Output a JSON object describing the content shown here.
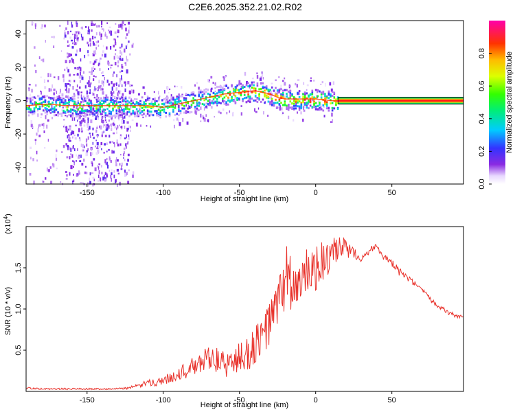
{
  "figure_title": "C2E6.2025.352.21.02.R02",
  "chart_data": [
    {
      "type": "heatmap",
      "name": "spectrogram",
      "xlabel": "Height of straight line (km)",
      "ylabel": "Frequency (Hz)",
      "xlim": [
        -190,
        97
      ],
      "ylim": [
        -50,
        48
      ],
      "xticks": [
        -150,
        -100,
        -50,
        0,
        50
      ],
      "xtick_labels": [
        "-150",
        "-100",
        "-50",
        "0",
        "50"
      ],
      "yticks": [
        -40,
        -20,
        0,
        20,
        40
      ],
      "ytick_labels": [
        "-40",
        "-20",
        "0",
        "20",
        "40"
      ],
      "ridge": {
        "x": [
          -190,
          -175,
          -165,
          -150,
          -130,
          -110,
          -100,
          -90,
          -80,
          -70,
          -60,
          -50,
          -40,
          -35,
          -30,
          -25,
          -20,
          -10,
          0,
          10,
          97
        ],
        "y": [
          -3,
          -2,
          -3,
          -3,
          -3,
          -3,
          -4,
          -2,
          0,
          2,
          4,
          5,
          6,
          5,
          4,
          2,
          1,
          1,
          1,
          0,
          0
        ]
      },
      "colorbar": {
        "label": "Normalized spectral amplitude",
        "range": [
          0,
          1
        ],
        "ticks": [
          0.0,
          0.2,
          0.4,
          0.6,
          0.8
        ],
        "tick_labels": [
          "0.0",
          "0.2",
          "0.4",
          "0.6",
          "0.8"
        ]
      }
    },
    {
      "type": "line",
      "name": "snr",
      "xlabel": "Height of straight line (km)",
      "ylabel": "SNR (10 * v/v)",
      "multiplier": "(x10",
      "multiplier_exp": "4",
      "multiplier_close": ")",
      "xlim": [
        -190,
        97
      ],
      "ylim": [
        0,
        2.0
      ],
      "xticks": [
        -150,
        -100,
        -50,
        0,
        50
      ],
      "xtick_labels": [
        "-150",
        "-100",
        "-50",
        "0",
        "50"
      ],
      "yticks": [
        0.5,
        1.0,
        1.5
      ],
      "ytick_labels": [
        "0.5",
        "1.0",
        "1.5"
      ],
      "series": [
        {
          "name": "SNR",
          "color": "#e8312a",
          "x": [
            -190,
            -180,
            -170,
            -160,
            -150,
            -140,
            -130,
            -120,
            -110,
            -100,
            -95,
            -90,
            -85,
            -80,
            -75,
            -70,
            -65,
            -60,
            -55,
            -50,
            -45,
            -40,
            -35,
            -30,
            -25,
            -20,
            -18,
            -15,
            -10,
            -5,
            0,
            5,
            10,
            15,
            20,
            25,
            30,
            35,
            40,
            45,
            50,
            55,
            60,
            65,
            70,
            75,
            80,
            85,
            90,
            97
          ],
          "y": [
            0.04,
            0.03,
            0.03,
            0.03,
            0.03,
            0.03,
            0.03,
            0.05,
            0.1,
            0.13,
            0.17,
            0.22,
            0.25,
            0.3,
            0.33,
            0.45,
            0.38,
            0.32,
            0.35,
            0.4,
            0.45,
            0.55,
            0.65,
            0.85,
            1.05,
            1.35,
            1.5,
            1.2,
            1.3,
            1.45,
            1.48,
            1.58,
            1.62,
            1.7,
            1.73,
            1.68,
            1.62,
            1.7,
            1.78,
            1.62,
            1.55,
            1.45,
            1.38,
            1.3,
            1.22,
            1.12,
            1.05,
            0.98,
            0.93,
            0.9
          ],
          "noise": [
            0.01,
            0.01,
            0.01,
            0.01,
            0.01,
            0.01,
            0.01,
            0.02,
            0.04,
            0.06,
            0.06,
            0.08,
            0.1,
            0.12,
            0.12,
            0.18,
            0.16,
            0.16,
            0.18,
            0.2,
            0.22,
            0.25,
            0.25,
            0.3,
            0.3,
            0.38,
            0.4,
            0.35,
            0.32,
            0.3,
            0.28,
            0.25,
            0.22,
            0.2,
            0.12,
            0.06,
            0.05,
            0.05,
            0.04,
            0.05,
            0.05,
            0.05,
            0.04,
            0.04,
            0.04,
            0.03,
            0.03,
            0.03,
            0.03,
            0.02
          ]
        }
      ]
    }
  ]
}
